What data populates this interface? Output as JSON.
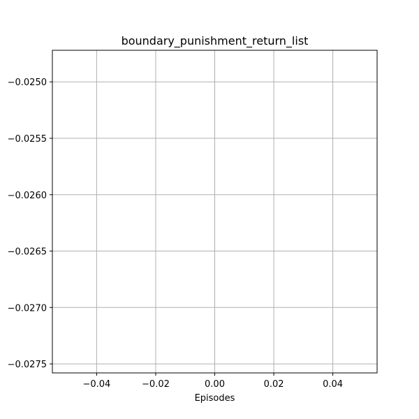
{
  "chart_data": {
    "type": "line",
    "title": "boundary_punishment_return_list",
    "xlabel": "Episodes",
    "ylabel": "",
    "xlim": [
      -0.055,
      0.055
    ],
    "ylim": [
      -0.02758,
      -0.02472
    ],
    "xticks": [
      -0.04,
      -0.02,
      0.0,
      0.02,
      0.04
    ],
    "xtick_labels": [
      "−0.04",
      "−0.02",
      "0.00",
      "0.02",
      "0.04"
    ],
    "yticks": [
      -0.025,
      -0.0255,
      -0.026,
      -0.0265,
      -0.027,
      -0.0275
    ],
    "ytick_labels": [
      "−0.0250",
      "−0.0255",
      "−0.0260",
      "−0.0265",
      "−0.0270",
      "−0.0275"
    ],
    "grid": true,
    "series": [
      {
        "x": [],
        "y": []
      }
    ],
    "colors": {
      "grid": "#b0b0b0",
      "axes": "#000000",
      "line": "#1f77b4"
    }
  }
}
